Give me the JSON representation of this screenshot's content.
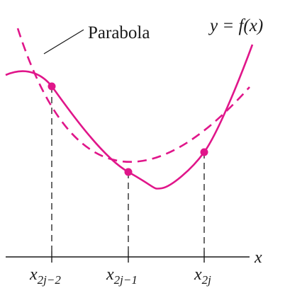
{
  "labels": {
    "parabola": "Parabola",
    "function": "y = f(x)",
    "x_axis": "x"
  },
  "ticks": [
    {
      "base": "x",
      "sub": "2j−2"
    },
    {
      "base": "x",
      "sub": "2j−1"
    },
    {
      "base": "x",
      "sub": "2j"
    }
  ],
  "colors": {
    "curve": "#e0168a",
    "axis": "#1a1a1a",
    "background": "#ffffff"
  }
}
